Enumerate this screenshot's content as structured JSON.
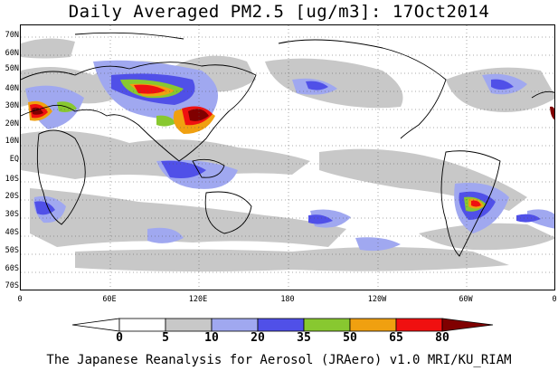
{
  "title": "Daily Averaged PM2.5 [ug/m3]: 17Oct2014",
  "footer": "The Japanese Reanalysis for Aerosol (JRAero) v1.0 MRI/KU_RIAM",
  "latitude_labels": [
    "70N",
    "60N",
    "50N",
    "40N",
    "30N",
    "20N",
    "10N",
    "EQ",
    "10S",
    "20S",
    "30S",
    "40S",
    "50S",
    "60S",
    "70S"
  ],
  "longitude_labels": [
    "0",
    "60E",
    "120E",
    "180",
    "120W",
    "60W",
    "0"
  ],
  "colorbar": {
    "thresholds": [
      "0",
      "5",
      "10",
      "20",
      "35",
      "50",
      "65",
      "80"
    ],
    "colors": [
      "#ffffff",
      "#c8c8c8",
      "#a0a8f0",
      "#5050e8",
      "#88c830",
      "#f0a010",
      "#f01010",
      "#800000"
    ]
  }
}
